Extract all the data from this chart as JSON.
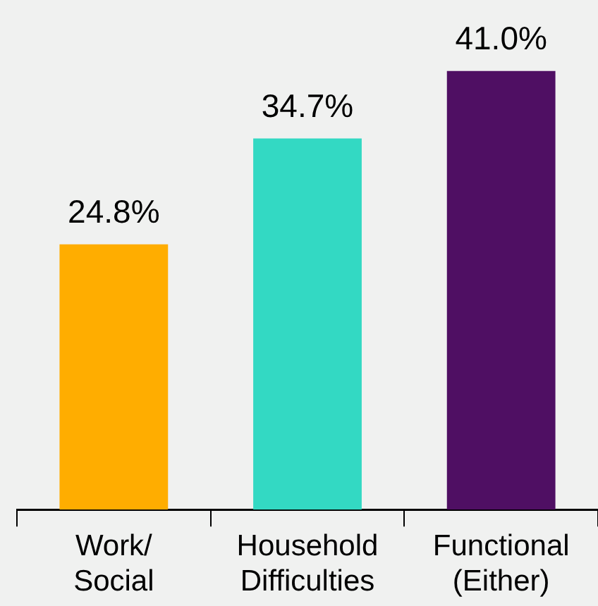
{
  "chart_data": {
    "type": "bar",
    "categories": [
      "Work/ Social",
      "Household Difficulties",
      "Functional (Either)"
    ],
    "values": [
      24.8,
      34.7,
      41.0
    ],
    "value_labels": [
      "24.8%",
      "34.7%",
      "41.0%"
    ],
    "colors": [
      "#ffad00",
      "#33d9c3",
      "#4f0f63"
    ]
  }
}
